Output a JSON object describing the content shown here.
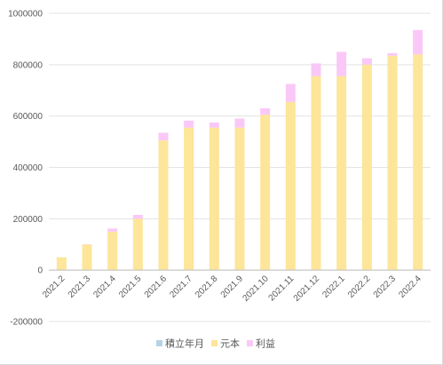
{
  "chart_data": {
    "type": "bar",
    "stacked": true,
    "title": "",
    "xlabel": "",
    "ylabel": "",
    "categories": [
      "2021.2",
      "2021.3",
      "2021.4",
      "2021.5",
      "2021.6",
      "2021.7",
      "2021.8",
      "2021.9",
      "2021.10",
      "2021.11",
      "2021.12",
      "2022.1",
      "2022.2",
      "2022.3",
      "2022.4"
    ],
    "ylim": [
      -200000,
      1000000
    ],
    "yticks": [
      -200000,
      0,
      200000,
      400000,
      600000,
      800000,
      1000000
    ],
    "y_tick_labels": [
      "-200000",
      "0",
      "200000",
      "400000",
      "600000",
      "800000",
      "1000000"
    ],
    "grid": true,
    "legend_position": "bottom",
    "series": [
      {
        "name": "積立年月",
        "color": "#b4d3e6",
        "values": [
          0,
          0,
          0,
          0,
          0,
          0,
          0,
          0,
          0,
          0,
          0,
          0,
          0,
          0,
          0
        ]
      },
      {
        "name": "元本",
        "color": "#fde59a",
        "values": [
          50000,
          100000,
          150000,
          200000,
          505000,
          555000,
          555000,
          555000,
          605000,
          655000,
          755000,
          755000,
          800000,
          835000,
          840000
        ]
      },
      {
        "name": "利益",
        "color": "#fac8f7",
        "values": [
          0,
          1000,
          12000,
          15000,
          30000,
          27000,
          20000,
          35000,
          25000,
          70000,
          50000,
          95000,
          25000,
          10000,
          95000
        ]
      }
    ]
  }
}
